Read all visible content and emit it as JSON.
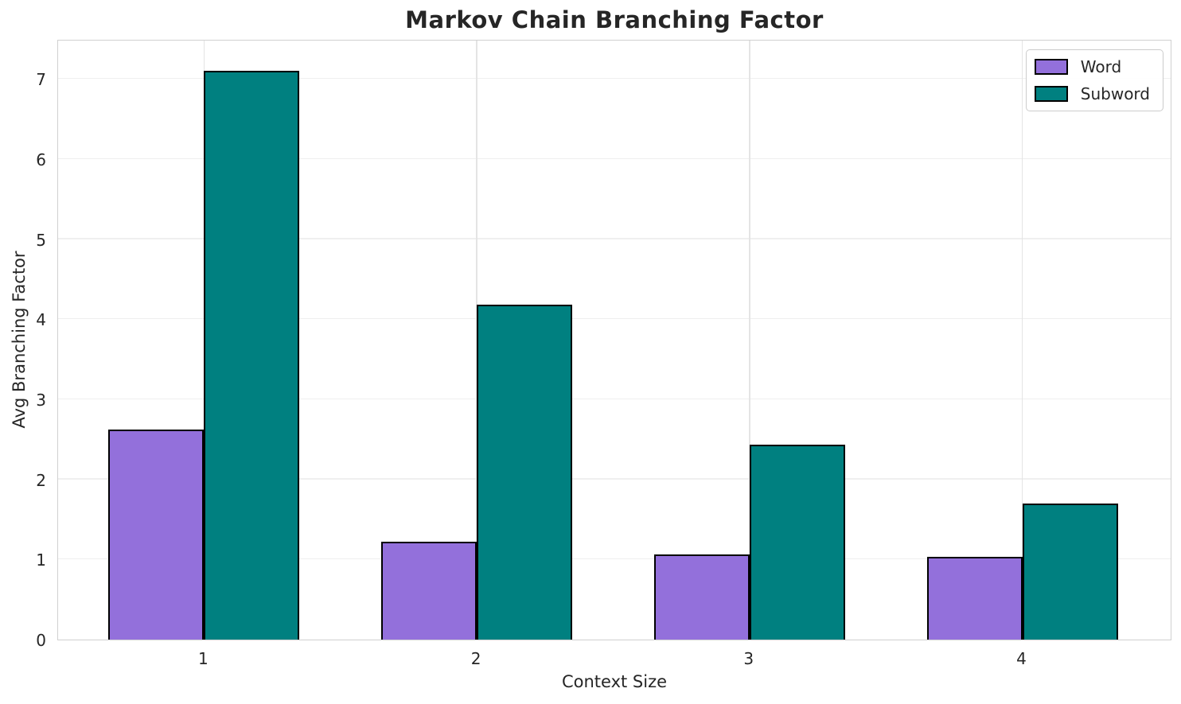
{
  "chart_data": {
    "type": "bar",
    "title": "Markov Chain Branching Factor",
    "xlabel": "Context Size",
    "ylabel": "Avg Branching Factor",
    "categories": [
      "1",
      "2",
      "3",
      "4"
    ],
    "series": [
      {
        "name": "Word",
        "color": "#9370DB",
        "values": [
          2.62,
          1.22,
          1.06,
          1.03
        ]
      },
      {
        "name": "Subword",
        "color": "#008080",
        "values": [
          7.1,
          4.18,
          2.43,
          1.7
        ]
      }
    ],
    "ylim": [
      0,
      7.5
    ],
    "yticks": [
      0,
      1,
      2,
      3,
      4,
      5,
      6,
      7
    ],
    "grid": true,
    "legend_position": "upper right",
    "bar_edge_color": "#000000",
    "bar_width_data_units": 0.35
  }
}
